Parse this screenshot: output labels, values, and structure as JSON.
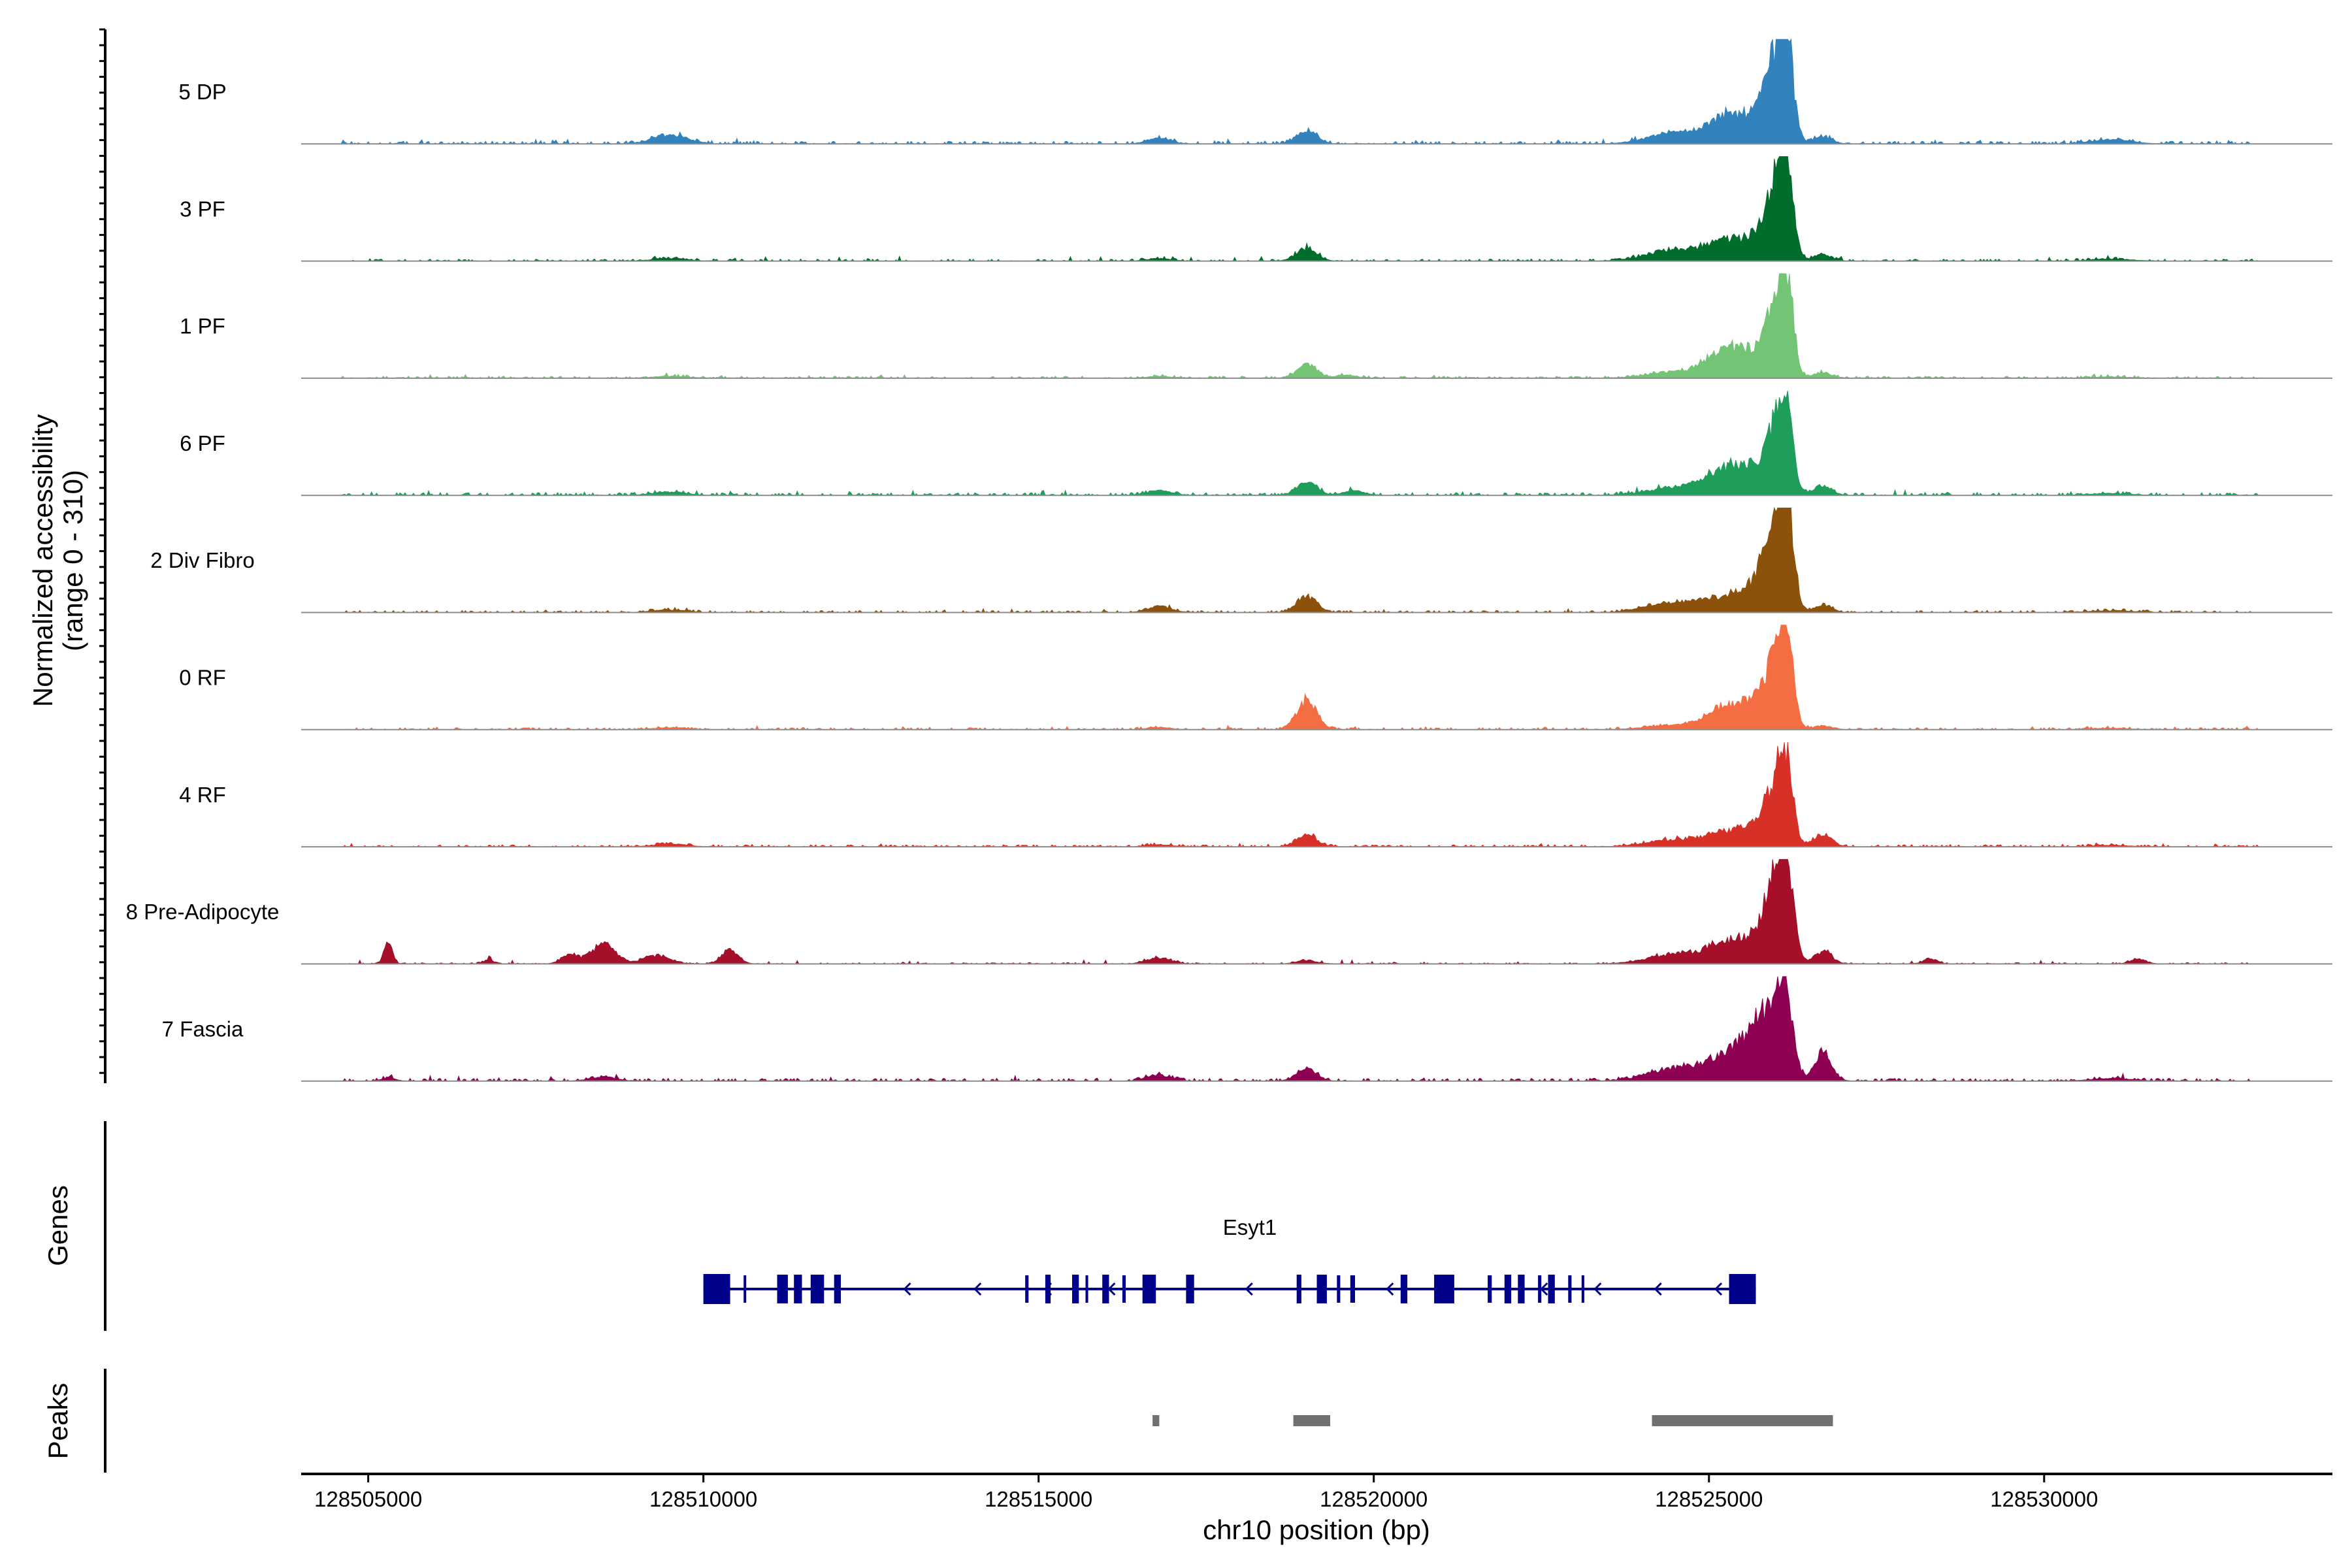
{
  "chart_data": {
    "type": "area",
    "title": "",
    "ylabel": "Normalized accessibility",
    "ylabel_range": "(range 0 - 310)",
    "xlabel": "chr10 position (bp)",
    "xlim": [
      128504000,
      128534300
    ],
    "ylim": [
      0,
      310
    ],
    "x_ticks": [
      128505000,
      128510000,
      128515000,
      128520000,
      128525000,
      128530000
    ],
    "x_tick_labels": [
      "128505000",
      "128510000",
      "128515000",
      "128520000",
      "128525000",
      "128530000"
    ],
    "series": [
      {
        "name": "5 DP",
        "color": "#3182BD",
        "base": 4,
        "noise": 3,
        "peaks": [
          [
            128509500,
            250,
            28
          ],
          [
            128516800,
            180,
            16
          ],
          [
            128519000,
            150,
            38
          ],
          [
            128524500,
            400,
            32
          ],
          [
            128525300,
            300,
            80
          ],
          [
            128525700,
            180,
            48
          ],
          [
            128526000,
            160,
            225
          ],
          [
            128526150,
            100,
            250
          ],
          [
            128526700,
            130,
            22
          ],
          [
            128531000,
            300,
            12
          ]
        ]
      },
      {
        "name": "3 PF",
        "color": "#006D2C",
        "base": 3,
        "noise": 3,
        "peaks": [
          [
            128509500,
            250,
            8
          ],
          [
            128516800,
            180,
            8
          ],
          [
            128519000,
            150,
            40
          ],
          [
            128524500,
            400,
            35
          ],
          [
            128525300,
            300,
            58
          ],
          [
            128525700,
            180,
            38
          ],
          [
            128526000,
            160,
            205
          ],
          [
            128526150,
            100,
            225
          ],
          [
            128526700,
            130,
            20
          ],
          [
            128531000,
            300,
            6
          ]
        ]
      },
      {
        "name": "1 PF",
        "color": "#74C476",
        "base": 3,
        "noise": 2,
        "peaks": [
          [
            128509500,
            250,
            6
          ],
          [
            128516800,
            180,
            6
          ],
          [
            128519000,
            150,
            40
          ],
          [
            128519600,
            150,
            10
          ],
          [
            128524500,
            400,
            18
          ],
          [
            128525300,
            300,
            88
          ],
          [
            128525700,
            180,
            30
          ],
          [
            128526000,
            160,
            200
          ],
          [
            128526150,
            100,
            230
          ],
          [
            128526700,
            130,
            18
          ],
          [
            128531000,
            300,
            4
          ]
        ]
      },
      {
        "name": "6 PF",
        "color": "#1E9E5A",
        "base": 4,
        "noise": 3,
        "peaks": [
          [
            128509500,
            250,
            10
          ],
          [
            128516800,
            180,
            14
          ],
          [
            128519000,
            150,
            40
          ],
          [
            128519700,
            160,
            14
          ],
          [
            128524500,
            400,
            24
          ],
          [
            128525300,
            300,
            82
          ],
          [
            128525700,
            180,
            38
          ],
          [
            128526000,
            160,
            180
          ],
          [
            128526150,
            100,
            200
          ],
          [
            128526700,
            130,
            30
          ],
          [
            128531000,
            300,
            6
          ]
        ]
      },
      {
        "name": "2 Div Fibro",
        "color": "#8C510A",
        "base": 3,
        "noise": 2,
        "peaks": [
          [
            128509500,
            250,
            8
          ],
          [
            128516800,
            180,
            18
          ],
          [
            128519000,
            150,
            48
          ],
          [
            128524500,
            400,
            32
          ],
          [
            128525300,
            300,
            45
          ],
          [
            128525700,
            180,
            58
          ],
          [
            128526000,
            160,
            260
          ],
          [
            128526150,
            100,
            265
          ],
          [
            128526700,
            130,
            22
          ],
          [
            128531000,
            300,
            6
          ]
        ]
      },
      {
        "name": "0 RF",
        "color": "#F46D43",
        "base": 3,
        "noise": 2,
        "peaks": [
          [
            128509500,
            250,
            6
          ],
          [
            128516800,
            180,
            6
          ],
          [
            128519000,
            150,
            88
          ],
          [
            128524500,
            400,
            14
          ],
          [
            128525300,
            300,
            70
          ],
          [
            128525700,
            180,
            50
          ],
          [
            128526000,
            160,
            195
          ],
          [
            128526150,
            100,
            225
          ],
          [
            128526700,
            130,
            12
          ],
          [
            128531000,
            300,
            4
          ]
        ]
      },
      {
        "name": "4 RF",
        "color": "#D73027",
        "base": 3,
        "noise": 2,
        "peaks": [
          [
            128509500,
            250,
            8
          ],
          [
            128516800,
            180,
            6
          ],
          [
            128519000,
            150,
            36
          ],
          [
            128524500,
            400,
            22
          ],
          [
            128525300,
            300,
            45
          ],
          [
            128525700,
            180,
            40
          ],
          [
            128526000,
            160,
            165
          ],
          [
            128526150,
            100,
            185
          ],
          [
            128526700,
            130,
            38
          ],
          [
            128531000,
            300,
            4
          ]
        ]
      },
      {
        "name": "8 Pre-Adipocyte",
        "color": "#A50F2A",
        "base": 2,
        "noise": 3,
        "peaks": [
          [
            128505300,
            60,
            70
          ],
          [
            128506800,
            80,
            12
          ],
          [
            128508000,
            120,
            30
          ],
          [
            128508500,
            180,
            60
          ],
          [
            128509300,
            200,
            25
          ],
          [
            128510400,
            120,
            45
          ],
          [
            128516800,
            180,
            18
          ],
          [
            128519000,
            150,
            10
          ],
          [
            128524500,
            400,
            30
          ],
          [
            128525300,
            300,
            65
          ],
          [
            128525700,
            180,
            50
          ],
          [
            128526000,
            160,
            230
          ],
          [
            128526150,
            100,
            250
          ],
          [
            128526700,
            130,
            38
          ],
          [
            128528300,
            100,
            16
          ],
          [
            128531400,
            120,
            14
          ]
        ]
      },
      {
        "name": "7 Fascia",
        "color": "#8E0152",
        "base": 4,
        "noise": 3,
        "peaks": [
          [
            128505300,
            100,
            10
          ],
          [
            128508500,
            200,
            12
          ],
          [
            128516800,
            180,
            18
          ],
          [
            128519000,
            150,
            35
          ],
          [
            128524500,
            400,
            38
          ],
          [
            128525300,
            300,
            82
          ],
          [
            128525700,
            180,
            120
          ],
          [
            128526000,
            160,
            185
          ],
          [
            128526150,
            100,
            200
          ],
          [
            128526700,
            130,
            85
          ],
          [
            128531000,
            300,
            8
          ]
        ]
      }
    ],
    "gene_track": {
      "label": "Genes",
      "gene": "Esyt1",
      "color": "#00008B",
      "strand": "-",
      "start": 128510000,
      "end": 128525700,
      "exons": [
        [
          128510000,
          128510400,
          "wide"
        ],
        [
          128510600,
          128510630,
          "narrow"
        ],
        [
          128511100,
          128511260,
          "mid"
        ],
        [
          128511350,
          128511470,
          "mid"
        ],
        [
          128511600,
          128511800,
          "mid"
        ],
        [
          128511950,
          128512050,
          "mid"
        ],
        [
          128514800,
          128514850,
          "narrow"
        ],
        [
          128515100,
          128515180,
          "mid"
        ],
        [
          128515500,
          128515600,
          "mid"
        ],
        [
          128515700,
          128515740,
          "narrow"
        ],
        [
          128515950,
          128516050,
          "mid"
        ],
        [
          128516250,
          128516300,
          "narrow"
        ],
        [
          128516550,
          128516750,
          "mid"
        ],
        [
          128517200,
          128517320,
          "mid"
        ],
        [
          128518850,
          128518920,
          "mid"
        ],
        [
          128519150,
          128519300,
          "mid"
        ],
        [
          128519450,
          128519500,
          "narrow"
        ],
        [
          128519650,
          128519720,
          "narrow"
        ],
        [
          128520400,
          128520500,
          "mid"
        ],
        [
          128520900,
          128521200,
          "mid"
        ],
        [
          128521700,
          128521760,
          "narrow"
        ],
        [
          128521950,
          128522050,
          "mid"
        ],
        [
          128522150,
          128522250,
          "mid"
        ],
        [
          128522450,
          128522500,
          "narrow"
        ],
        [
          128522600,
          128522700,
          "mid"
        ],
        [
          128522900,
          128522950,
          "narrow"
        ],
        [
          128523100,
          128523140,
          "narrow"
        ],
        [
          128525300,
          128525700,
          "wide"
        ]
      ],
      "arrows": [
        128513000,
        128514050,
        128515100,
        128516050,
        128518100,
        128519200,
        128520200,
        128522500,
        128523300,
        128524200,
        128525100
      ]
    },
    "peaks_track": {
      "label": "Peaks",
      "color": "#707070",
      "regions": [
        [
          128516700,
          128516800
        ],
        [
          128518800,
          128519350
        ],
        [
          128524150,
          128526850
        ]
      ]
    }
  }
}
